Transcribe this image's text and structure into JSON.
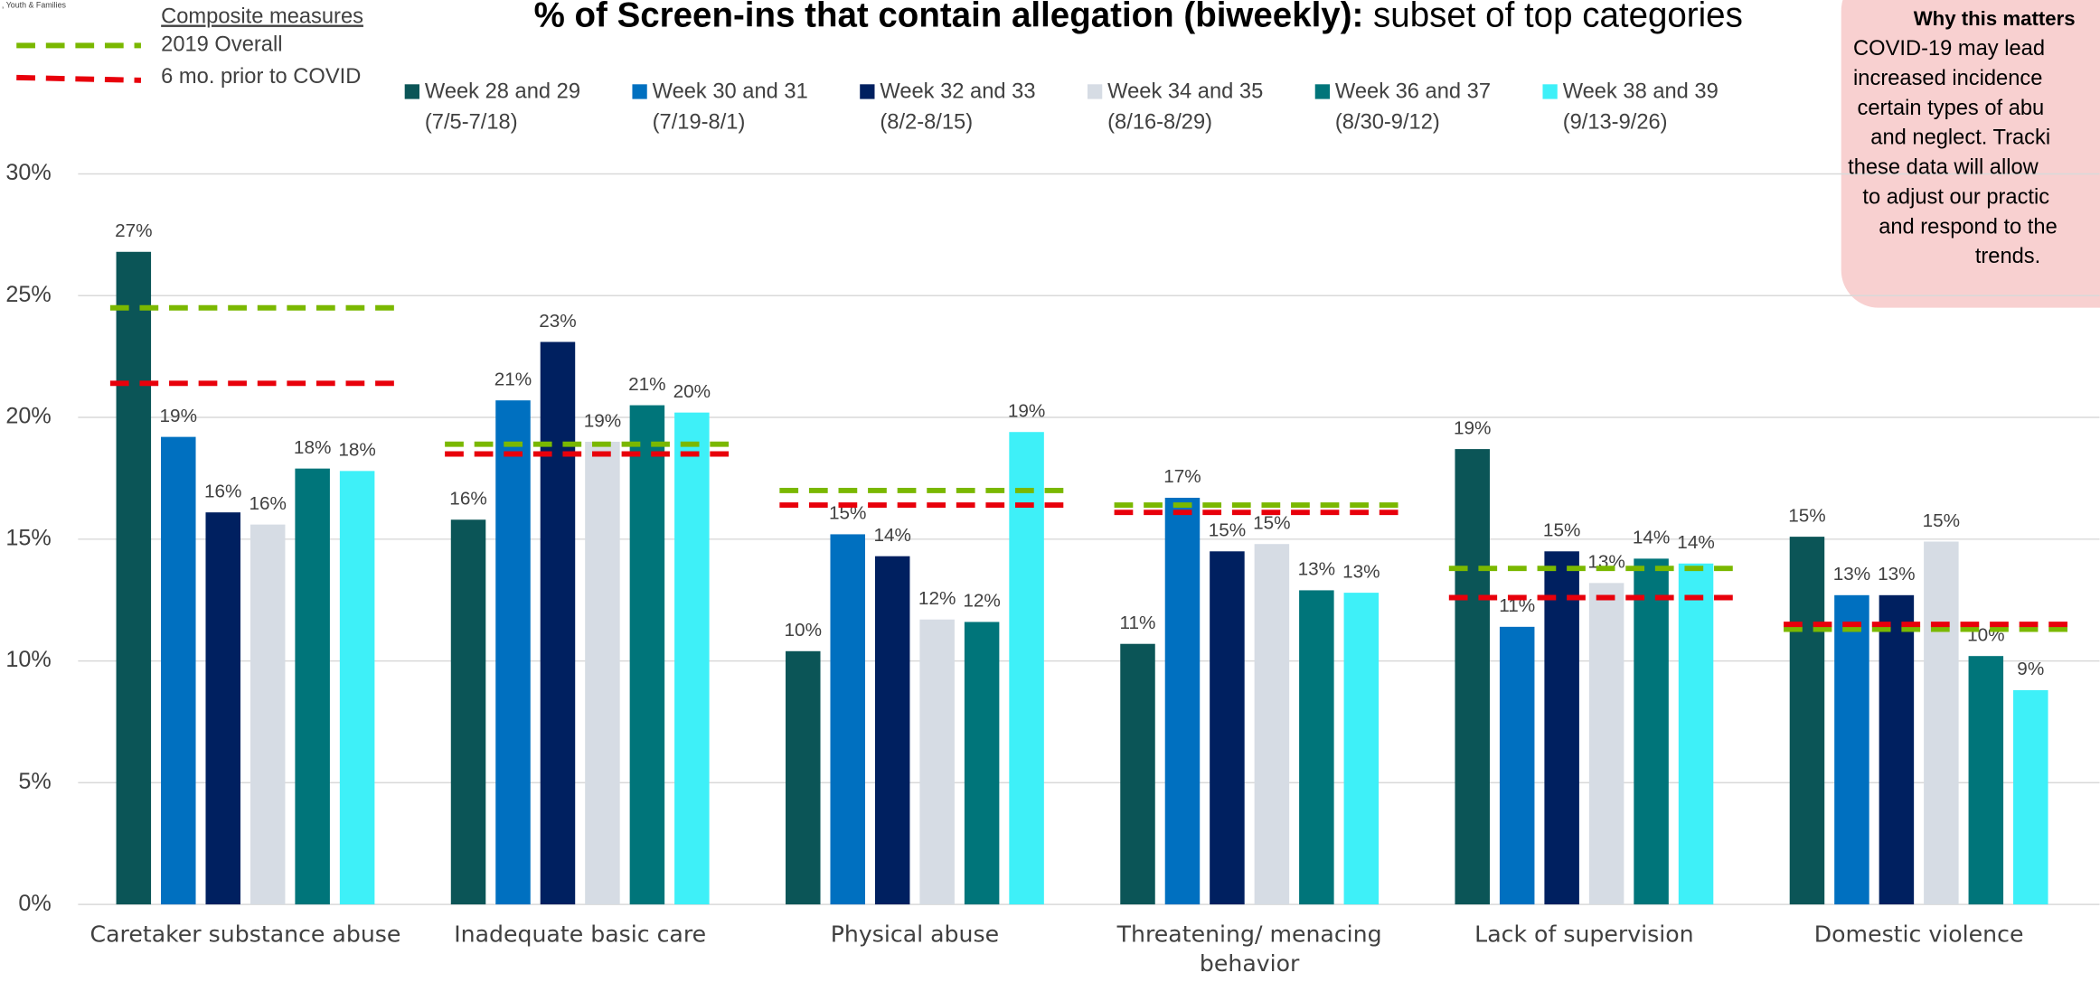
{
  "chart_data": {
    "type": "bar",
    "logo_text": ", Youth & Families",
    "title": "% of Screen-ins that contain allegation (biweekly):",
    "subtitle": " subset of top categories",
    "categories": [
      "Caretaker substance abuse",
      "Inadequate basic care",
      "Physical abuse",
      "Threatening/ menacing behavior",
      "Lack of supervision",
      "Domestic violence"
    ],
    "series": [
      {
        "name": "Week 28 and 29",
        "period": "(7/5-7/18)",
        "color": "#0b5557",
        "values": [
          26.8,
          15.8,
          10.4,
          10.7,
          18.7,
          15.1
        ],
        "value_labels": [
          "27%",
          "16%",
          "10%",
          "11%",
          "19%",
          "15%"
        ]
      },
      {
        "name": "Week 30 and 31",
        "period": "(7/19-8/1)",
        "color": "#0070c0",
        "values": [
          19.2,
          20.7,
          15.2,
          16.7,
          11.4,
          12.7
        ],
        "value_labels": [
          "19%",
          "21%",
          "15%",
          "17%",
          "11%",
          "13%"
        ]
      },
      {
        "name": "Week 32 and 33",
        "period": "(8/2-8/15)",
        "color": "#002060",
        "values": [
          16.1,
          23.1,
          14.3,
          14.5,
          14.5,
          12.7
        ],
        "value_labels": [
          "16%",
          "23%",
          "14%",
          "15%",
          "15%",
          "13%"
        ]
      },
      {
        "name": "Week 34 and 35",
        "period": "(8/16-8/29)",
        "color": "#d6dce4",
        "values": [
          15.6,
          19.0,
          11.7,
          14.8,
          13.2,
          14.9
        ],
        "value_labels": [
          "16%",
          "19%",
          "12%",
          "15%",
          "13%",
          "15%"
        ]
      },
      {
        "name": "Week 36 and 37",
        "period": "(8/30-9/12)",
        "color": "#00757a",
        "values": [
          17.9,
          20.5,
          11.6,
          12.9,
          14.2,
          10.2
        ],
        "value_labels": [
          "18%",
          "21%",
          "12%",
          "13%",
          "14%",
          "10%"
        ]
      },
      {
        "name": "Week 38 and 39",
        "period": "(9/13-9/26)",
        "color": "#3ef0f8",
        "values": [
          17.8,
          20.2,
          19.4,
          12.8,
          14.0,
          8.8
        ],
        "value_labels": [
          "18%",
          "20%",
          "19%",
          "13%",
          "14%",
          "9%"
        ]
      }
    ],
    "reference_heading": "Composite measures",
    "reference_lines": [
      {
        "name": "2019 Overall",
        "color": "#7ab800",
        "values": [
          24.5,
          18.9,
          17.0,
          16.4,
          13.8,
          11.3
        ]
      },
      {
        "name": "6 mo. prior to COVID",
        "color": "#e8000b",
        "values": [
          21.4,
          18.5,
          16.4,
          16.1,
          12.6,
          11.5
        ]
      }
    ],
    "ylim": [
      0,
      30
    ],
    "yticks": [
      {
        "value": 0,
        "label": "0%"
      },
      {
        "value": 5,
        "label": "5%"
      },
      {
        "value": 10,
        "label": "10%"
      },
      {
        "value": 15,
        "label": "15%"
      },
      {
        "value": 20,
        "label": "20%"
      },
      {
        "value": 25,
        "label": "25%"
      },
      {
        "value": 30,
        "label": "30%"
      }
    ],
    "grid": true,
    "callout": {
      "heading": "Why this matters",
      "lines": [
        "COVID-19 may lead",
        "increased incidence",
        "certain types of abu",
        "and neglect. Tracki",
        "these data will allow",
        "to adjust our practic",
        "and respond to the",
        "trends."
      ]
    }
  }
}
